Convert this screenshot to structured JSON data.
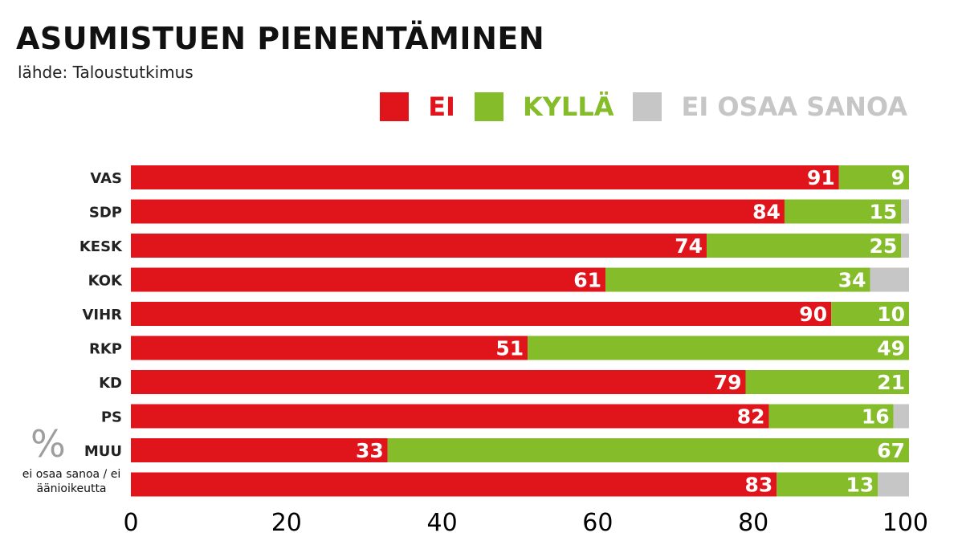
{
  "chart_data": {
    "type": "bar",
    "stacked": true,
    "orientation": "horizontal",
    "title": "ASUMISTUEN PIENENTÄMINEN",
    "subtitle": "lähde: Taloustutkimus",
    "unit_mark": "%",
    "unit_note": "ei osaa sanoa / ei äänioikeutta",
    "categories": [
      "VAS",
      "SDP",
      "KESK",
      "KOK",
      "VIHR",
      "RKP",
      "KD",
      "PS",
      "MUU",
      ""
    ],
    "series": [
      {
        "name": "EI",
        "color": "#e0141b",
        "values": [
          91,
          84,
          74,
          61,
          90,
          51,
          79,
          82,
          33,
          83
        ]
      },
      {
        "name": "KYLLÄ",
        "color": "#85bc2a",
        "values": [
          9,
          15,
          25,
          34,
          10,
          49,
          21,
          16,
          67,
          13
        ]
      },
      {
        "name": "EI OSAA SANOA",
        "color": "#c6c6c6",
        "values": [
          0,
          1,
          1,
          5,
          0,
          0,
          0,
          2,
          0,
          4
        ]
      }
    ],
    "xlim": [
      0,
      100
    ],
    "xticks": [
      "0",
      "20",
      "40",
      "60",
      "80",
      "100"
    ],
    "legend_position": "top-right",
    "grid": false
  }
}
